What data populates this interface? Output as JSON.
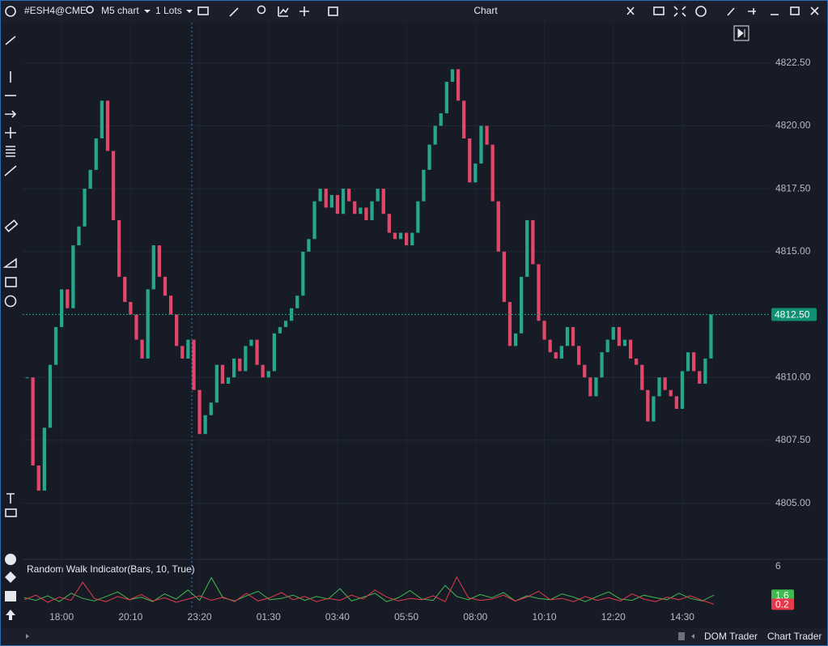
{
  "toolbar": {
    "symbol": "#ESH4@CME",
    "timeframe": "M5 chart",
    "lots": "1 Lots",
    "title": "Chart"
  },
  "chart_data": [
    {
      "type": "candlestick",
      "closes": [
        4810,
        4806.5,
        4805.5,
        4808,
        4810.5,
        4812,
        4813.5,
        4812.75,
        4815.25,
        4816,
        4817.5,
        4818.25,
        4819.5,
        4821,
        4819,
        4816.25,
        4814,
        4813,
        4812.5,
        4811.5,
        4810.75,
        4813.5,
        4815.25,
        4814,
        4813.25,
        4812.5,
        4811.25,
        4810.75,
        4811.5,
        4809.5,
        4807.75,
        4808.5,
        4809,
        4810.5,
        4809.75,
        4810,
        4810.75,
        4810.25,
        4811.25,
        4811.5,
        4810.5,
        4810,
        4810.25,
        4811.75,
        4812,
        4812.25,
        4812.75,
        4813.25,
        4815,
        4815.5,
        4817,
        4817.5,
        4816.75,
        4817.25,
        4816.5,
        4817.5,
        4817,
        4816.5,
        4816.75,
        4816.25,
        4817,
        4817.5,
        4816.5,
        4815.75,
        4815.5,
        4815.75,
        4815.25,
        4815.75,
        4817,
        4818.25,
        4819.25,
        4820,
        4820.5,
        4821.75,
        4822.25,
        4821,
        4819.5,
        4817.75,
        4818.5,
        4820,
        4819.25,
        4817,
        4815,
        4813,
        4811.25,
        4811.75,
        4814,
        4816.25,
        4814.5,
        4812.25,
        4811.5,
        4811,
        4810.75,
        4811.25,
        4812,
        4811.25,
        4810.5,
        4810,
        4809.25,
        4810,
        4811,
        4811.5,
        4812,
        4811.25,
        4811.5,
        4810.75,
        4810.5,
        4809.5,
        4808.25,
        4809.25,
        4810,
        4809.5,
        4809.25,
        4808.75,
        4810.25,
        4811,
        4810.25,
        4809.75,
        4810.75,
        4812.5
      ],
      "up_color": "#26a68a",
      "down_color": "#e0476a",
      "ylim": [
        4802.8,
        4824.1
      ],
      "yticks": [
        {
          "value": 4805,
          "label": "4805.00"
        },
        {
          "value": 4807.5,
          "label": "4807.50"
        },
        {
          "value": 4810,
          "label": "4810.00"
        },
        {
          "value": 4815,
          "label": "4815.00"
        },
        {
          "value": 4817.5,
          "label": "4817.50"
        },
        {
          "value": 4820,
          "label": "4820.00"
        },
        {
          "value": 4822.5,
          "label": "4822.50"
        }
      ],
      "xticks": [
        {
          "value": 6,
          "label": "18:00"
        },
        {
          "value": 18,
          "label": "20:10"
        },
        {
          "value": 30,
          "label": "23:20"
        },
        {
          "value": 42,
          "label": "01:30"
        },
        {
          "value": 54,
          "label": "03:40"
        },
        {
          "value": 66,
          "label": "05:50"
        },
        {
          "value": 78,
          "label": "08:00"
        },
        {
          "value": 90,
          "label": "10:10"
        },
        {
          "value": 102,
          "label": "12:20"
        },
        {
          "value": 114,
          "label": "14:30"
        }
      ],
      "last_price": {
        "value": 4812.5,
        "label": "4812.50"
      },
      "grid": true
    },
    {
      "type": "line",
      "title": "Random Walk Indicator(Bars, 10, True)",
      "ylim": [
        0,
        7
      ],
      "yticks": [
        6
      ],
      "series": [
        {
          "color": "#3fb950",
          "values": [
            1.2,
            0.8,
            1.5,
            0.6,
            1.9,
            1.1,
            0.7,
            1.4,
            2.1,
            0.9,
            1.3,
            0.6,
            1.8,
            1.0,
            2.4,
            0.8,
            4.3,
            1.2,
            0.7,
            1.5,
            2.2,
            0.9,
            1.1,
            1.6,
            0.8,
            1.4,
            1.0,
            2.6,
            0.7,
            1.3,
            1.9,
            0.6,
            1.2,
            2.3,
            1.0,
            0.8,
            3.1,
            1.4,
            0.9,
            1.7,
            1.2,
            2.0,
            0.7,
            1.5,
            1.1,
            0.9,
            1.8,
            1.3,
            0.6,
            1.4,
            2.1,
            1.0,
            0.8,
            1.6,
            1.2,
            0.9,
            1.9,
            1.1,
            0.7,
            1.6
          ]
        },
        {
          "color": "#e5394d",
          "values": [
            0.9,
            1.6,
            0.5,
            1.3,
            0.8,
            3.6,
            1.1,
            0.6,
            1.4,
            0.9,
            1.7,
            0.7,
            1.2,
            0.5,
            1.0,
            1.5,
            0.8,
            1.3,
            0.6,
            1.9,
            0.7,
            1.2,
            2.0,
            0.9,
            1.4,
            0.6,
            1.1,
            0.8,
            1.6,
            1.0,
            2.4,
            1.3,
            0.7,
            1.1,
            0.9,
            1.5,
            0.6,
            4.4,
            1.2,
            0.8,
            1.0,
            1.6,
            0.7,
            1.3,
            2.2,
            0.9,
            1.1,
            0.6,
            1.4,
            0.8,
            1.2,
            0.7,
            1.8,
            1.0,
            0.6,
            1.3,
            0.9,
            1.5,
            0.8,
            0.2
          ]
        }
      ]
    }
  ],
  "footer": {
    "dom_trader": "DOM Trader",
    "chart_trader": "Chart Trader"
  }
}
